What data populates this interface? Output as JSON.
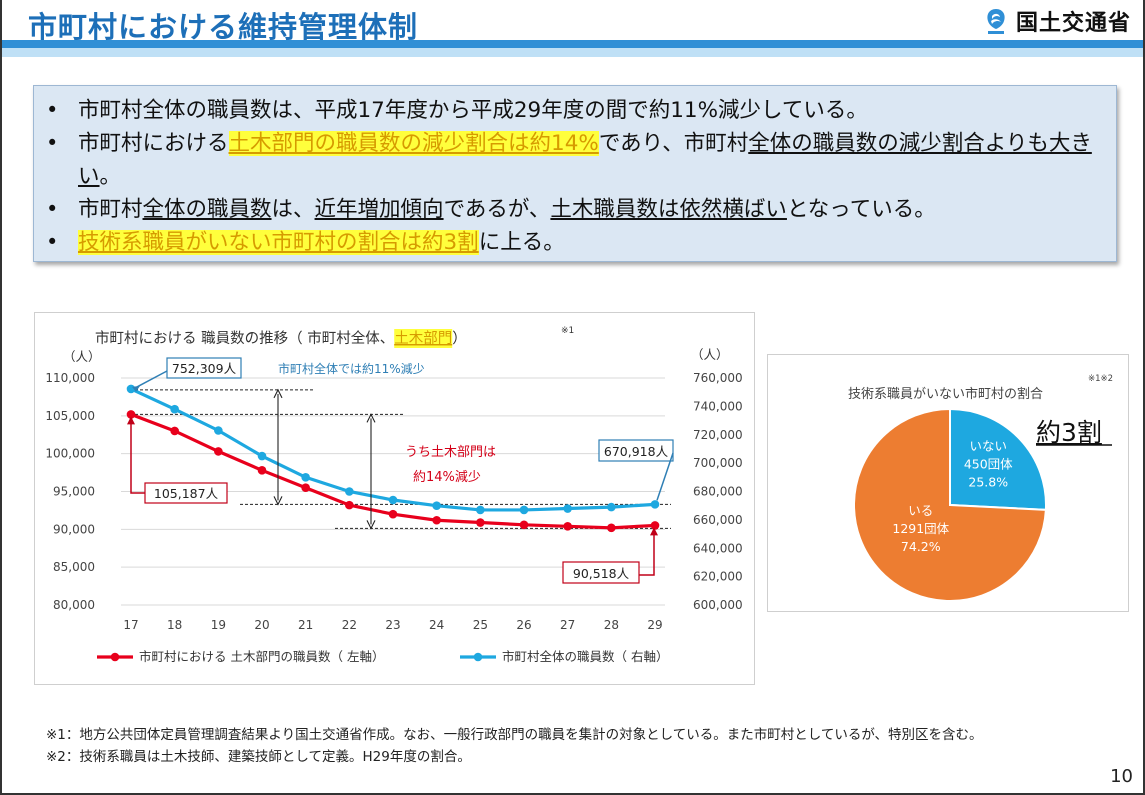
{
  "header": {
    "title": "市町村における維持管理体制",
    "logo_text": "国土交通省",
    "accent": "#1d6fb8"
  },
  "bullets": [
    {
      "segments": [
        {
          "t": "市町村全体の職員数は、平成17年度から平成29年度の間で約11%減少している。",
          "s": ""
        }
      ]
    },
    {
      "segments": [
        {
          "t": "市町村における",
          "s": ""
        },
        {
          "t": "土木部門の職員数の減少割合は約14%",
          "s": "hl"
        },
        {
          "t": "であり、市町村",
          "s": ""
        },
        {
          "t": "全体の職員数の減少割合よりも大きい",
          "s": "ul"
        },
        {
          "t": "。",
          "s": ""
        }
      ]
    },
    {
      "segments": [
        {
          "t": "市町村",
          "s": ""
        },
        {
          "t": "全体の職員数",
          "s": "ul"
        },
        {
          "t": "は、",
          "s": ""
        },
        {
          "t": "近年増加傾向",
          "s": "ul"
        },
        {
          "t": "であるが、",
          "s": ""
        },
        {
          "t": "土木職員数は依然横ばい",
          "s": "ul"
        },
        {
          "t": "となっている。",
          "s": ""
        }
      ]
    },
    {
      "segments": [
        {
          "t": "技術系職員がいない市町村の割合は約3割",
          "s": "hl"
        },
        {
          "t": "に上る。",
          "s": ""
        }
      ]
    }
  ],
  "line_chart": {
    "title_plain": "市町村における 職員数の推移（ 市町村全体、",
    "title_hl": "土木部門",
    "title_end": "）",
    "title_note": "※1",
    "left_unit": "（人）",
    "right_unit": "（人）",
    "left_ticks": [
      "110,000",
      "105,000",
      "100,000",
      "95,000",
      "90,000",
      "85,000",
      "80,000"
    ],
    "right_ticks": [
      "760,000",
      "740,000",
      "720,000",
      "700,000",
      "680,000",
      "660,000",
      "640,000",
      "620,000",
      "600,000"
    ],
    "annotation_total": "市町村全体では約11%減少",
    "annotation_civil_1": "うち土木部門は",
    "annotation_civil_2": "約14%減少",
    "callout_total_start": "752,309人",
    "callout_total_end": "670,918人",
    "callout_civil_start": "105,187人",
    "callout_civil_end": "90,518人",
    "colors": {
      "civil": "#e8001c",
      "total": "#1ea8e0"
    }
  },
  "chart_data": [
    {
      "type": "line",
      "x": [
        17,
        18,
        19,
        20,
        21,
        22,
        23,
        24,
        25,
        26,
        27,
        28,
        29
      ],
      "series": [
        {
          "name": "市町村における 土木部門の職員数（ 左軸）",
          "axis": "left",
          "values": [
            105187,
            103000,
            100300,
            97800,
            95500,
            93200,
            92000,
            91200,
            90900,
            90600,
            90400,
            90200,
            90518
          ]
        },
        {
          "name": "市町村全体の職員数（ 右軸）",
          "axis": "right",
          "values": [
            752309,
            738000,
            723000,
            705000,
            690000,
            680000,
            674000,
            670000,
            667000,
            667000,
            668000,
            669000,
            670918
          ]
        }
      ],
      "ylim_left": [
        80000,
        110000
      ],
      "ylim_right": [
        600000,
        760000
      ],
      "grid": true,
      "legend": "bottom"
    },
    {
      "type": "pie",
      "title": "技術系職員がいない市町村の割合",
      "title_note": "※1※2",
      "callout": "約3割",
      "slices": [
        {
          "label": "いない",
          "count": "450団体",
          "pct_label": "25.8%",
          "value": 25.8,
          "color": "#1ea8e0"
        },
        {
          "label": "いる",
          "count": "1291団体",
          "pct_label": "74.2%",
          "value": 74.2,
          "color": "#ed7d31"
        }
      ]
    }
  ],
  "notes": [
    "※1：地方公共団体定員管理調査結果より国土交通省作成。なお、一般行政部門の職員を集計の対象としている。また市町村としているが、特別区を含む。",
    "※2：技術系職員は土木技師、建築技師として定義。H29年度の割合。"
  ],
  "page_number": "10"
}
